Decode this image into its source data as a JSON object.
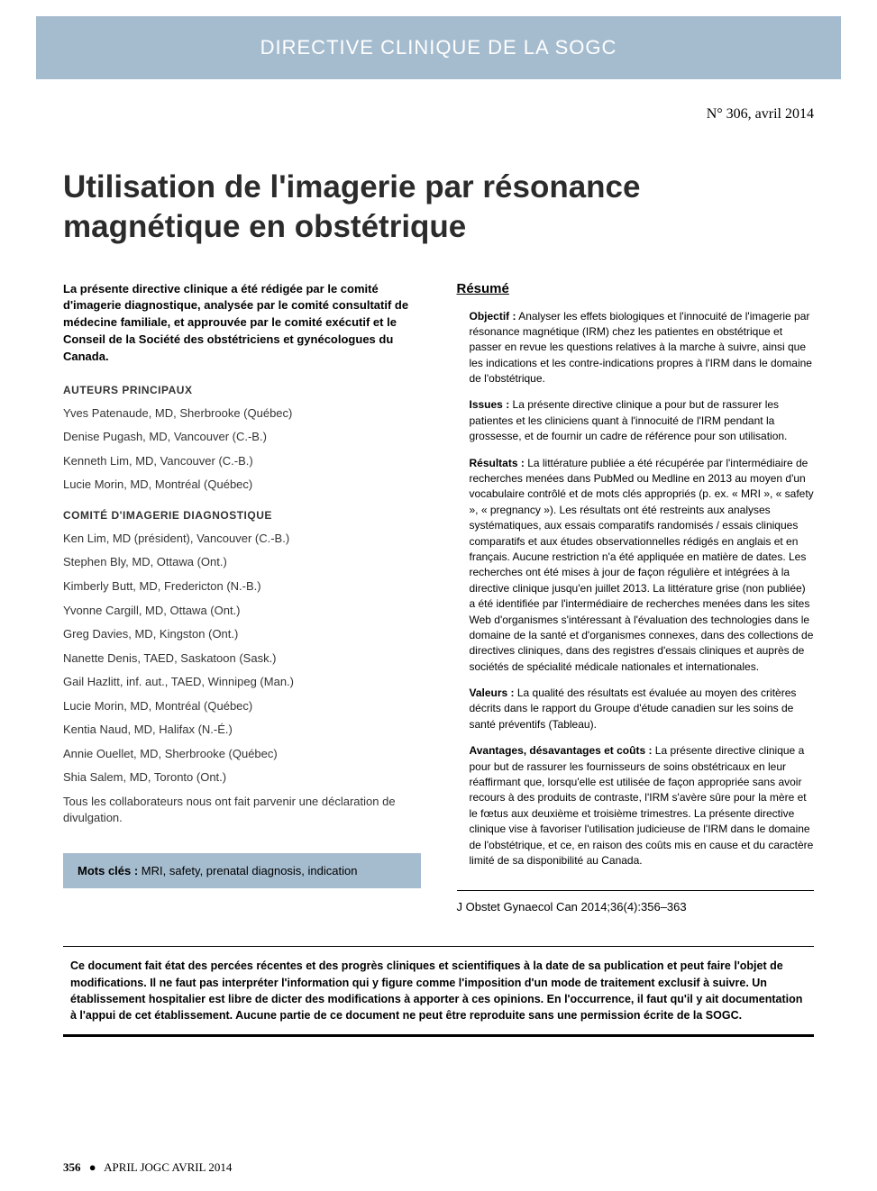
{
  "header": {
    "band_text": "DIRECTIVE CLINIQUE DE LA SOGC",
    "band_bg": "#a5bccf",
    "band_fg": "#ffffff",
    "issue": "N° 306, avril 2014"
  },
  "title": "Utilisation de l'imagerie par résonance magnétique en obstétrique",
  "intro": "La présente directive clinique a été rédigée par le comité d'imagerie diagnostique, analysée par le comité consultatif de médecine familiale, et approuvée par le comité exécutif et le Conseil de la Société des obstétriciens et gynécologues du Canada.",
  "authors_label": "AUTEURS PRINCIPAUX",
  "authors": [
    "Yves Patenaude, MD, Sherbrooke (Québec)",
    "Denise Pugash, MD, Vancouver (C.-B.)",
    "Kenneth Lim, MD, Vancouver (C.-B.)",
    "Lucie Morin, MD, Montréal (Québec)"
  ],
  "committee_label": "COMITÉ D'IMAGERIE DIAGNOSTIQUE",
  "committee": [
    "Ken Lim, MD (président), Vancouver (C.-B.)",
    "Stephen Bly, MD, Ottawa (Ont.)",
    "Kimberly Butt, MD, Fredericton (N.-B.)",
    "Yvonne Cargill, MD, Ottawa (Ont.)",
    "Greg Davies, MD, Kingston (Ont.)",
    "Nanette Denis, TAED, Saskatoon (Sask.)",
    "Gail Hazlitt, inf. aut., TAED, Winnipeg (Man.)",
    "Lucie Morin, MD, Montréal (Québec)",
    "Kentia Naud, MD, Halifax (N.-É.)",
    "Annie Ouellet, MD, Sherbrooke (Québec)",
    "Shia Salem, MD, Toronto (Ont.)"
  ],
  "disclosure": "Tous les collaborateurs nous ont fait parvenir une déclaration de divulgation.",
  "resume": {
    "heading": "Résumé",
    "items": [
      {
        "label": "Objectif :",
        "text": " Analyser les effets biologiques et l'innocuité de l'imagerie par résonance magnétique (IRM) chez les patientes en obstétrique et passer en revue les questions relatives à la marche à suivre, ainsi que les indications et les contre-indications propres à l'IRM dans le domaine de l'obstétrique."
      },
      {
        "label": "Issues :",
        "text": " La présente directive clinique a pour but de rassurer les patientes et les cliniciens quant à l'innocuité de l'IRM pendant la grossesse, et de fournir un cadre de référence pour son utilisation."
      },
      {
        "label": "Résultats :",
        "text": " La littérature publiée a été récupérée par l'intermédiaire de recherches menées dans PubMed ou Medline en 2013 au moyen d'un vocabulaire contrôlé et de mots clés appropriés (p. ex. « MRI », « safety », « pregnancy »). Les résultats ont été restreints aux analyses systématiques, aux essais comparatifs randomisés / essais cliniques comparatifs et aux études observationnelles rédigés en anglais et en français. Aucune restriction n'a été appliquée en matière de dates. Les recherches ont été mises à jour de façon régulière et intégrées à la directive clinique jusqu'en juillet 2013. La littérature grise (non publiée) a été identifiée par l'intermédiaire de recherches menées dans les sites Web d'organismes s'intéressant à l'évaluation des technologies dans le domaine de la santé et d'organismes connexes, dans des collections de directives cliniques, dans des registres d'essais cliniques et auprès de sociétés de spécialité médicale nationales et internationales."
      },
      {
        "label": "Valeurs :",
        "text": " La qualité des résultats est évaluée au moyen des critères décrits dans le rapport du Groupe d'étude canadien sur les soins de santé préventifs (Tableau)."
      },
      {
        "label": "Avantages, désavantages et coûts :",
        "text": " La présente directive clinique a pour but de rassurer les fournisseurs de soins obstétricaux en leur réaffirmant que, lorsqu'elle est utilisée de façon appropriée sans avoir recours à des produits de contraste, l'IRM s'avère sûre pour la mère et le fœtus aux deuxième et troisième trimestres. La présente directive clinique vise à favoriser l'utilisation judicieuse de l'IRM dans le domaine de l'obstétrique, et ce, en raison des coûts mis en cause et du caractère limité de sa disponibilité au Canada."
      }
    ]
  },
  "keywords": {
    "label": "Mots clés :",
    "text": " MRI, safety, prenatal diagnosis, indication",
    "bg": "#a5bccf"
  },
  "citation": "J Obstet Gynaecol Can 2014;36(4):356–363",
  "disclaimer": "Ce document fait état des percées récentes et des progrès cliniques et scientifiques à la date de sa publication et peut faire l'objet de modifications. Il ne faut pas interpréter l'information qui y figure comme l'imposition d'un mode de traitement exclusif à suivre. Un établissement hospitalier est libre de dicter des modifications à apporter à ces opinions. En l'occurrence, il faut qu'il y ait documentation à l'appui de cet établissement. Aucune partie de ce document ne peut être reproduite sans une permission écrite de la SOGC.",
  "footer": {
    "page": "356",
    "journal": "APRIL JOGC AVRIL 2014"
  }
}
